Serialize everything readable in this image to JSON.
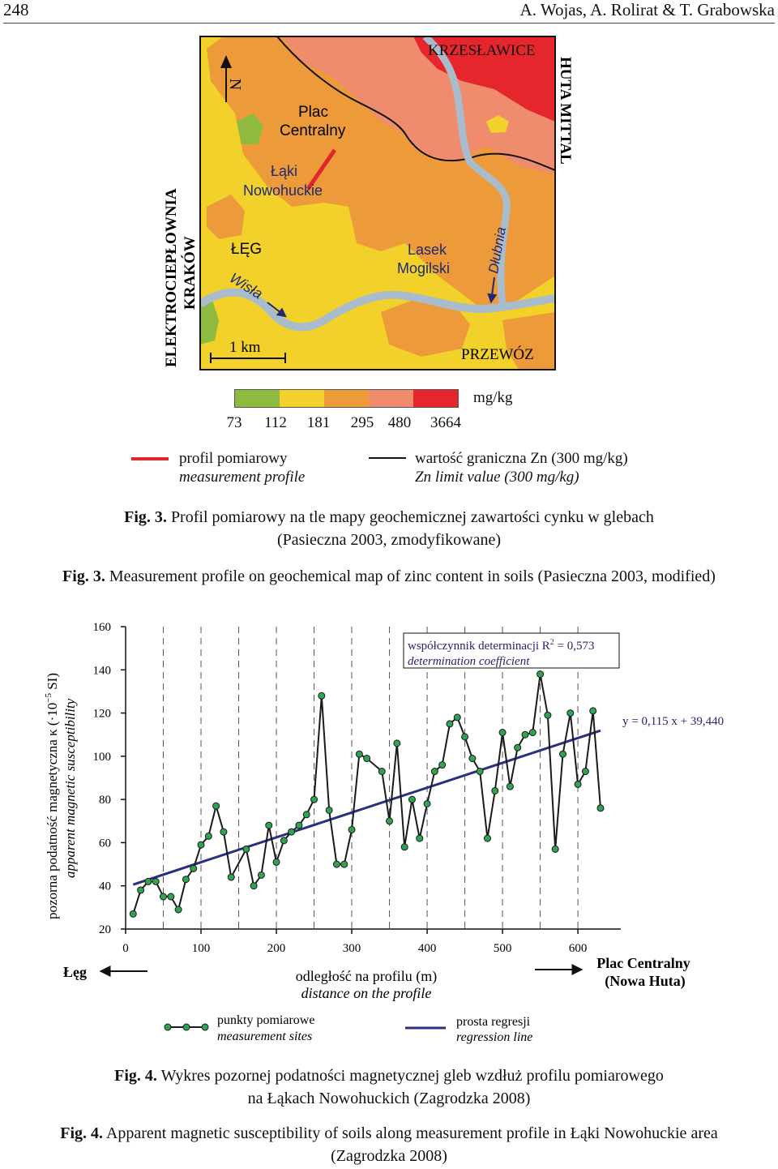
{
  "header": {
    "page_number": "248",
    "authors": "A. Wojas, A. Rolirat & T. Grabowska"
  },
  "map": {
    "labels": {
      "krzeslawice": "KRZESŁAWICE",
      "huta_mittal": "HUTA MITTAL",
      "elektrocieplownia_1": "ELEKTROCIEPŁOWNIA",
      "elektrocieplownia_2": "KRAKÓW",
      "plac_1": "Plac",
      "plac_2": "Centralny",
      "laki_1": "Łąki",
      "laki_2": "Nowohuckie",
      "leg": "ŁĘG",
      "wisla": "Wisła",
      "lasek_1": "Lasek",
      "lasek_2": "Mogilski",
      "dlubnia": "Dłubnia",
      "przewoz": "PRZEWÓZ",
      "scale": "1 km",
      "north": "N"
    },
    "zinc_legend": {
      "unit": "mg/kg",
      "class_colors": [
        "#8dba3f",
        "#f2d22a",
        "#ec9a3a",
        "#f08c6e",
        "#e5262c"
      ],
      "ticks": [
        "73",
        "112",
        "181",
        "295",
        "480",
        "3664"
      ]
    },
    "line_legend": {
      "profile_pl": "profil pomiarowy",
      "profile_en": "measurement profile",
      "profile_color": "#e0262a",
      "limit_pl": "wartość graniczna Zn (300 mg/kg)",
      "limit_en": "Zn limit value (300 mg/kg)",
      "limit_color": "#111111"
    }
  },
  "fig3": {
    "label": "Fig. 3.",
    "pl_line1": "Profil pomiarowy na tle mapy geochemicznej zawartości cynku w glebach",
    "pl_line2": "(Pasieczna 2003, zmodyfikowane)",
    "en": "Measurement profile on geochemical map of zinc content in soils (Pasieczna 2003, modified)"
  },
  "chart_data": {
    "type": "line",
    "ylabel_pl": "pozorna podatność magnetyczna κ (·10",
    "ylabel_exp": "−5",
    "ylabel_unit": " SI)",
    "ylabel_en": "apparent magnetic susceptibility",
    "xlabel_pl": "odległość na profilu (m)",
    "xlabel_en": "distance on the profile",
    "xlim": [
      0,
      630
    ],
    "ylim": [
      20,
      160
    ],
    "x_ticks": [
      "0",
      "100",
      "200",
      "300",
      "400",
      "500",
      "600"
    ],
    "y_ticks": [
      "20",
      "40",
      "60",
      "80",
      "100",
      "120",
      "140",
      "160"
    ],
    "left_end": "Łęg",
    "right_end_1": "Plac Centralny",
    "right_end_2": "(Nowa Huta)",
    "r2_label_pl": "współczynnik determinacji R",
    "r2_exp": "2",
    "r2_value": " = 0,573",
    "r2_label_en": "determination coefficient",
    "equation": "y = 0,115 x + 39,440",
    "regression": {
      "slope": 0.115,
      "intercept": 39.44,
      "x_start": 10,
      "x_end": 630
    },
    "series": [
      {
        "name": "punkty pomiarowe",
        "x": [
          10,
          20,
          30,
          40,
          50,
          60,
          70,
          80,
          90,
          100,
          110,
          120,
          130,
          140,
          160,
          170,
          180,
          190,
          200,
          210,
          220,
          230,
          240,
          250,
          260,
          270,
          280,
          290,
          300,
          310,
          320,
          340,
          350,
          360,
          370,
          380,
          390,
          400,
          410,
          420,
          430,
          440,
          450,
          460,
          470,
          480,
          490,
          500,
          510,
          520,
          530,
          540,
          550,
          560,
          570,
          580,
          590,
          600,
          610,
          620,
          630
        ],
        "y": [
          27,
          38,
          42,
          42,
          35,
          35,
          29,
          43,
          48,
          59,
          63,
          77,
          65,
          44,
          57,
          40,
          45,
          68,
          51,
          61,
          65,
          68,
          73,
          80,
          128,
          75,
          50,
          50,
          66,
          101,
          99,
          93,
          70,
          106,
          58,
          80,
          62,
          78,
          93,
          96,
          115,
          118,
          109,
          99,
          93,
          62,
          84,
          111,
          86,
          104,
          110,
          111,
          138,
          119,
          57,
          101,
          120,
          87,
          93,
          121,
          76
        ]
      }
    ],
    "colors": {
      "line": "#1a1a1a",
      "marker": "#2ea44f",
      "regression": "#2b2f7e",
      "label_blue": "#24266b"
    }
  },
  "chart_legend": {
    "points_pl": "punkty pomiarowe",
    "points_en": "measurement sites",
    "regression_pl": "prosta regresji",
    "regression_en": "regression line"
  },
  "fig4": {
    "label": "Fig. 4.",
    "pl_line1": "Wykres pozornej podatności magnetycznej gleb wzdłuż profilu pomiarowego",
    "pl_line2": "na Łąkach Nowohuckich (Zagrodzka 2008)",
    "en_line1": "Apparent magnetic susceptibility of soils along measurement profile in Łąki Nowohuckie area",
    "en_line2": "(Zagrodzka 2008)"
  }
}
